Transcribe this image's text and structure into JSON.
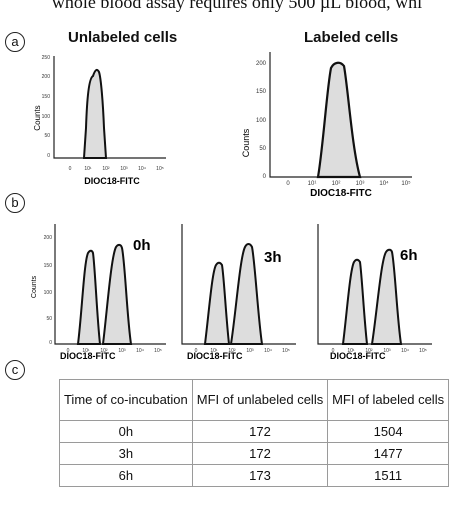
{
  "caption": "whole blood assay requires only 500 µL blood, whi",
  "panel_a": {
    "label": "a",
    "left": {
      "title": "Unlabeled cells",
      "ylabel": "Counts",
      "xlabel": "DIOC18-FITC",
      "yticks": [
        "0",
        "50",
        "100",
        "150",
        "200",
        "250"
      ],
      "xticks": [
        "0",
        "10¹",
        "10²",
        "10³",
        "10⁴",
        "10⁵"
      ]
    },
    "right": {
      "title": "Labeled cells",
      "ylabel": "Counts",
      "xlabel": "DIOC18-FITC",
      "yticks": [
        "0",
        "50",
        "100",
        "150",
        "200"
      ],
      "xticks": [
        "0",
        "10¹",
        "10²",
        "10³",
        "10⁴",
        "10⁵"
      ]
    }
  },
  "panel_b": {
    "label": "b",
    "plots": [
      {
        "time": "0h",
        "ylabel": "Counts",
        "xlabel": "DIOC18-FITC",
        "yticks": [
          "0",
          "50",
          "100",
          "150",
          "200"
        ],
        "xticks": [
          "0",
          "10¹",
          "10²",
          "10³",
          "10⁴",
          "10⁵"
        ]
      },
      {
        "time": "3h",
        "xlabel": "DIOC18-FITC",
        "xticks": [
          "0",
          "10¹",
          "10²",
          "10³",
          "10⁴",
          "10⁵"
        ]
      },
      {
        "time": "6h",
        "xlabel": "DIOC18-FITC",
        "xticks": [
          "0",
          "10¹",
          "10²",
          "10³",
          "10⁴",
          "10⁵"
        ]
      }
    ]
  },
  "panel_c": {
    "label": "c",
    "headers": [
      "Time of co-incubation",
      "MFI of unlabeled cells",
      "MFI of labeled cells"
    ],
    "rows": [
      [
        "0h",
        "172",
        "1504"
      ],
      [
        "3h",
        "172",
        "1477"
      ],
      [
        "6h",
        "173",
        "1511"
      ]
    ]
  }
}
